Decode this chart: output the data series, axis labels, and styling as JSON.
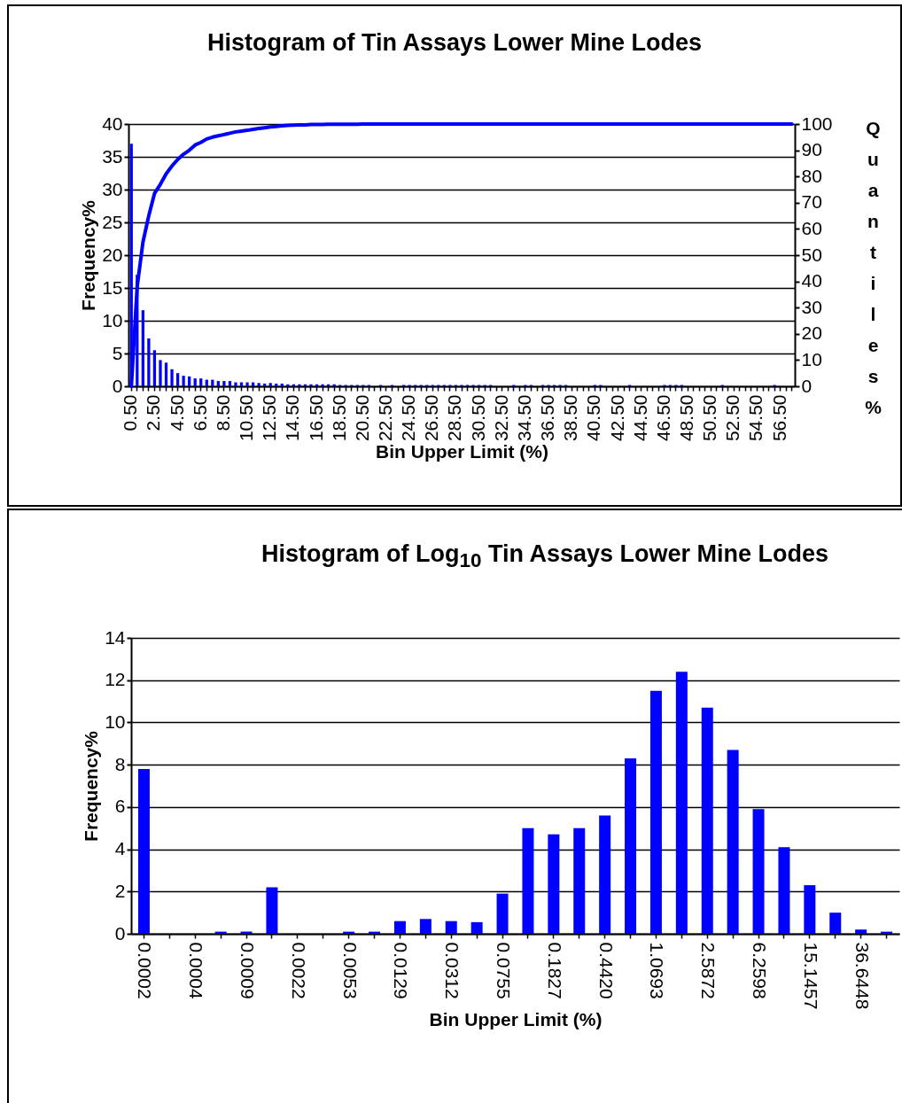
{
  "chart_data": [
    {
      "type": "bar",
      "title": "Histogram of Tin Assays Lower Mine Lodes",
      "xlabel": "Bin Upper Limit (%)",
      "ylabel": "Frequency%",
      "y2label": "Quantiles%",
      "categories": [
        "0.50",
        null,
        null,
        null,
        "2.50",
        null,
        null,
        null,
        "4.50",
        null,
        null,
        null,
        "6.50",
        null,
        null,
        null,
        "8.50",
        null,
        null,
        null,
        "10.50",
        null,
        null,
        null,
        "12.50",
        null,
        null,
        null,
        "14.50",
        null,
        null,
        null,
        "16.50",
        null,
        null,
        null,
        "18.50",
        null,
        null,
        null,
        "20.50",
        null,
        null,
        null,
        "22.50",
        null,
        null,
        null,
        "24.50",
        null,
        null,
        null,
        "26.50",
        null,
        null,
        null,
        "28.50",
        null,
        null,
        null,
        "30.50",
        null,
        null,
        null,
        "32.50",
        null,
        null,
        null,
        "34.50",
        null,
        null,
        null,
        "36.50",
        null,
        null,
        null,
        "38.50",
        null,
        null,
        null,
        "40.50",
        null,
        null,
        null,
        "42.50",
        null,
        null,
        null,
        "44.50",
        null,
        null,
        null,
        "46.50",
        null,
        null,
        null,
        "48.50",
        null,
        null,
        null,
        "50.50",
        null,
        null,
        null,
        "52.50",
        null,
        null,
        null,
        "54.50",
        null,
        null,
        null,
        "56.50",
        null,
        null
      ],
      "series": [
        {
          "color": "#0000ff",
          "values": [
            37.0,
            17.0,
            11.6,
            7.3,
            5.5,
            4.0,
            3.6,
            2.6,
            2.0,
            1.6,
            1.5,
            1.2,
            1.2,
            1.0,
            1.0,
            0.8,
            0.8,
            0.8,
            0.6,
            0.6,
            0.6,
            0.6,
            0.5,
            0.4,
            0.5,
            0.4,
            0.4,
            0.3,
            0.3,
            0.3,
            0.3,
            0.3,
            0.3,
            0.3,
            0.3,
            0.3,
            0.2,
            0.2,
            0.2,
            0.2,
            0.2,
            0.2,
            0,
            0.2,
            0,
            0.2,
            0,
            0.2,
            0.2,
            0.2,
            0.2,
            0.2,
            0.2,
            0.2,
            0.2,
            0.2,
            0.2,
            0.2,
            0.2,
            0.2,
            0.2,
            0.2,
            0.2,
            0,
            0,
            0,
            0.2,
            0,
            0.2,
            0.2,
            0,
            0.2,
            0.2,
            0.2,
            0.2,
            0.2,
            0,
            0,
            0,
            0,
            0.2,
            0.2,
            0,
            0,
            0,
            0,
            0.2,
            0,
            0,
            0,
            0,
            0,
            0.2,
            0.2,
            0.2,
            0.2,
            0,
            0,
            0,
            0,
            0,
            0,
            0.2,
            0,
            0,
            0,
            0,
            0,
            0,
            0,
            0,
            0.2,
            0,
            0,
            0
          ]
        },
        {
          "type": "line",
          "axis": "y2",
          "color": "#0000ff",
          "values": [
            0,
            38,
            55,
            65,
            73.6,
            77,
            81,
            84,
            86.5,
            88.5,
            90,
            92,
            93,
            94.3,
            95,
            95.5,
            96,
            96.5,
            97,
            97.3,
            97.6,
            98,
            98.3,
            98.6,
            98.9,
            99.1,
            99.3,
            99.5,
            99.6,
            99.7,
            99.7,
            99.8,
            99.8,
            99.8,
            99.9,
            99.9,
            99.9,
            99.9,
            99.9,
            99.9,
            100,
            100,
            100,
            100,
            100,
            100,
            100,
            100,
            100,
            100,
            100,
            100,
            100,
            100,
            100,
            100,
            100,
            100,
            100,
            100,
            100,
            100,
            100,
            100,
            100,
            100,
            100,
            100,
            100,
            100,
            100,
            100,
            100,
            100,
            100,
            100,
            100,
            100,
            100,
            100,
            100,
            100,
            100,
            100,
            100,
            100,
            100,
            100,
            100,
            100,
            100,
            100,
            100,
            100,
            100,
            100,
            100,
            100,
            100,
            100,
            100,
            100,
            100,
            100,
            100,
            100,
            100,
            100,
            100,
            100,
            100,
            100,
            100,
            100,
            100
          ]
        }
      ],
      "ylim": [
        0,
        40
      ],
      "yticks": [
        0,
        5,
        10,
        15,
        20,
        25,
        30,
        35,
        40
      ],
      "y2lim": [
        0,
        100
      ],
      "y2ticks": [
        0,
        10,
        20,
        30,
        40,
        50,
        60,
        70,
        80,
        90,
        100
      ],
      "grid": "y"
    },
    {
      "type": "bar",
      "title": "Histogram of Log$_{10}$ Tin Assays Lower Mine Lodes",
      "xlabel": "Bin Upper Limit (%)",
      "ylabel": "Frequency%",
      "categories": [
        "0.0002",
        null,
        "0.0004",
        null,
        "0.0009",
        null,
        "0.0022",
        null,
        "0.0053",
        null,
        "0.0129",
        null,
        "0.0312",
        null,
        "0.0755",
        null,
        "0.1827",
        null,
        "0.4420",
        null,
        "1.0693",
        null,
        "2.5872",
        null,
        "6.2598",
        null,
        "15.1457",
        null,
        "36.6448",
        null
      ],
      "color": "#0000ff",
      "values": [
        7.8,
        0,
        0,
        0.1,
        0.1,
        2.2,
        0,
        0,
        0.1,
        0.1,
        0.6,
        0.7,
        0.6,
        0.55,
        1.9,
        5.0,
        4.7,
        5.0,
        5.6,
        8.3,
        11.5,
        12.4,
        10.7,
        8.7,
        5.9,
        4.1,
        2.3,
        1.0,
        0.2,
        0.1
      ],
      "ylim": [
        0,
        14
      ],
      "yticks": [
        0,
        2,
        4,
        6,
        8,
        10,
        12,
        14
      ],
      "grid": "y"
    }
  ]
}
